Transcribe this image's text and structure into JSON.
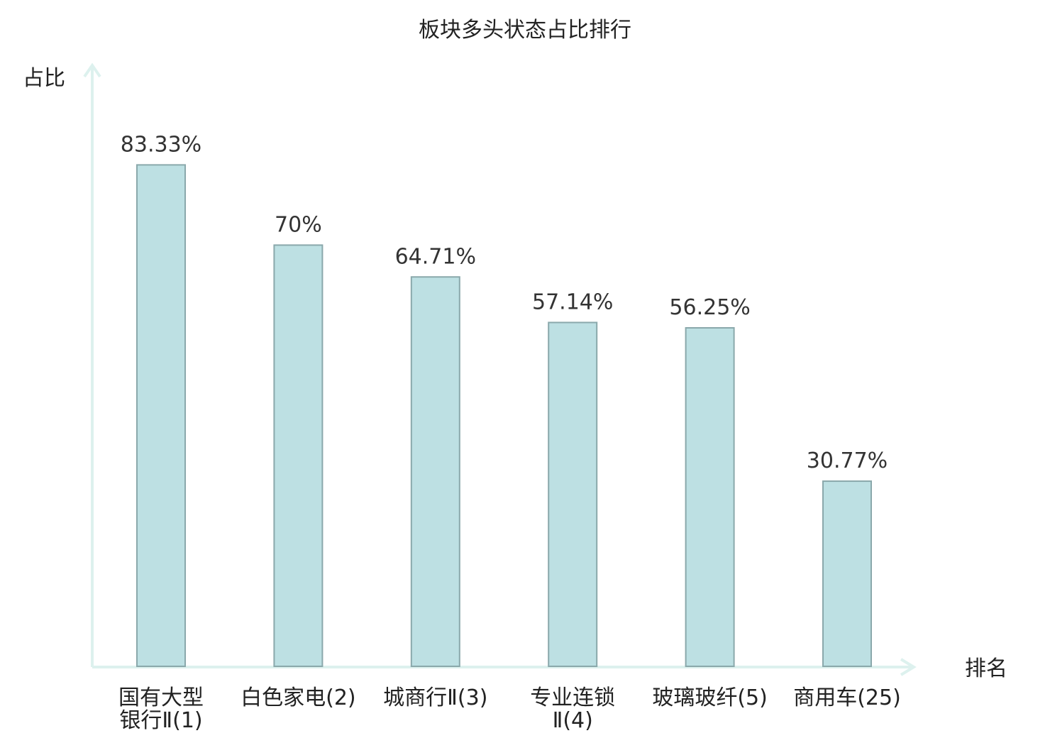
{
  "chart_data": {
    "type": "bar",
    "title": "板块多头状态占比排行",
    "ylabel": "占比",
    "xlabel": "排名",
    "ylim": [
      0,
      100
    ],
    "grid": false,
    "legend": "none",
    "categories": [
      [
        "国有大型",
        "银行Ⅱ(1)"
      ],
      [
        "白色家电(2)"
      ],
      [
        "城商行Ⅱ(3)"
      ],
      [
        "专业连锁",
        "Ⅱ(4)"
      ],
      [
        "玻璃玻纤(5)"
      ],
      [
        "商用车(25)"
      ]
    ],
    "values": [
      83.33,
      70,
      64.71,
      57.14,
      56.25,
      30.77
    ],
    "value_labels": [
      "83.33%",
      "70%",
      "64.71%",
      "57.14%",
      "56.25%",
      "30.77%"
    ],
    "highlight_index": 5
  },
  "colors": {
    "bar_fill": "#bde0e3",
    "bar_stroke": "#8aa8ab",
    "axis": "#ddf1ee",
    "text": "#222222",
    "highlight": "#e02020"
  }
}
